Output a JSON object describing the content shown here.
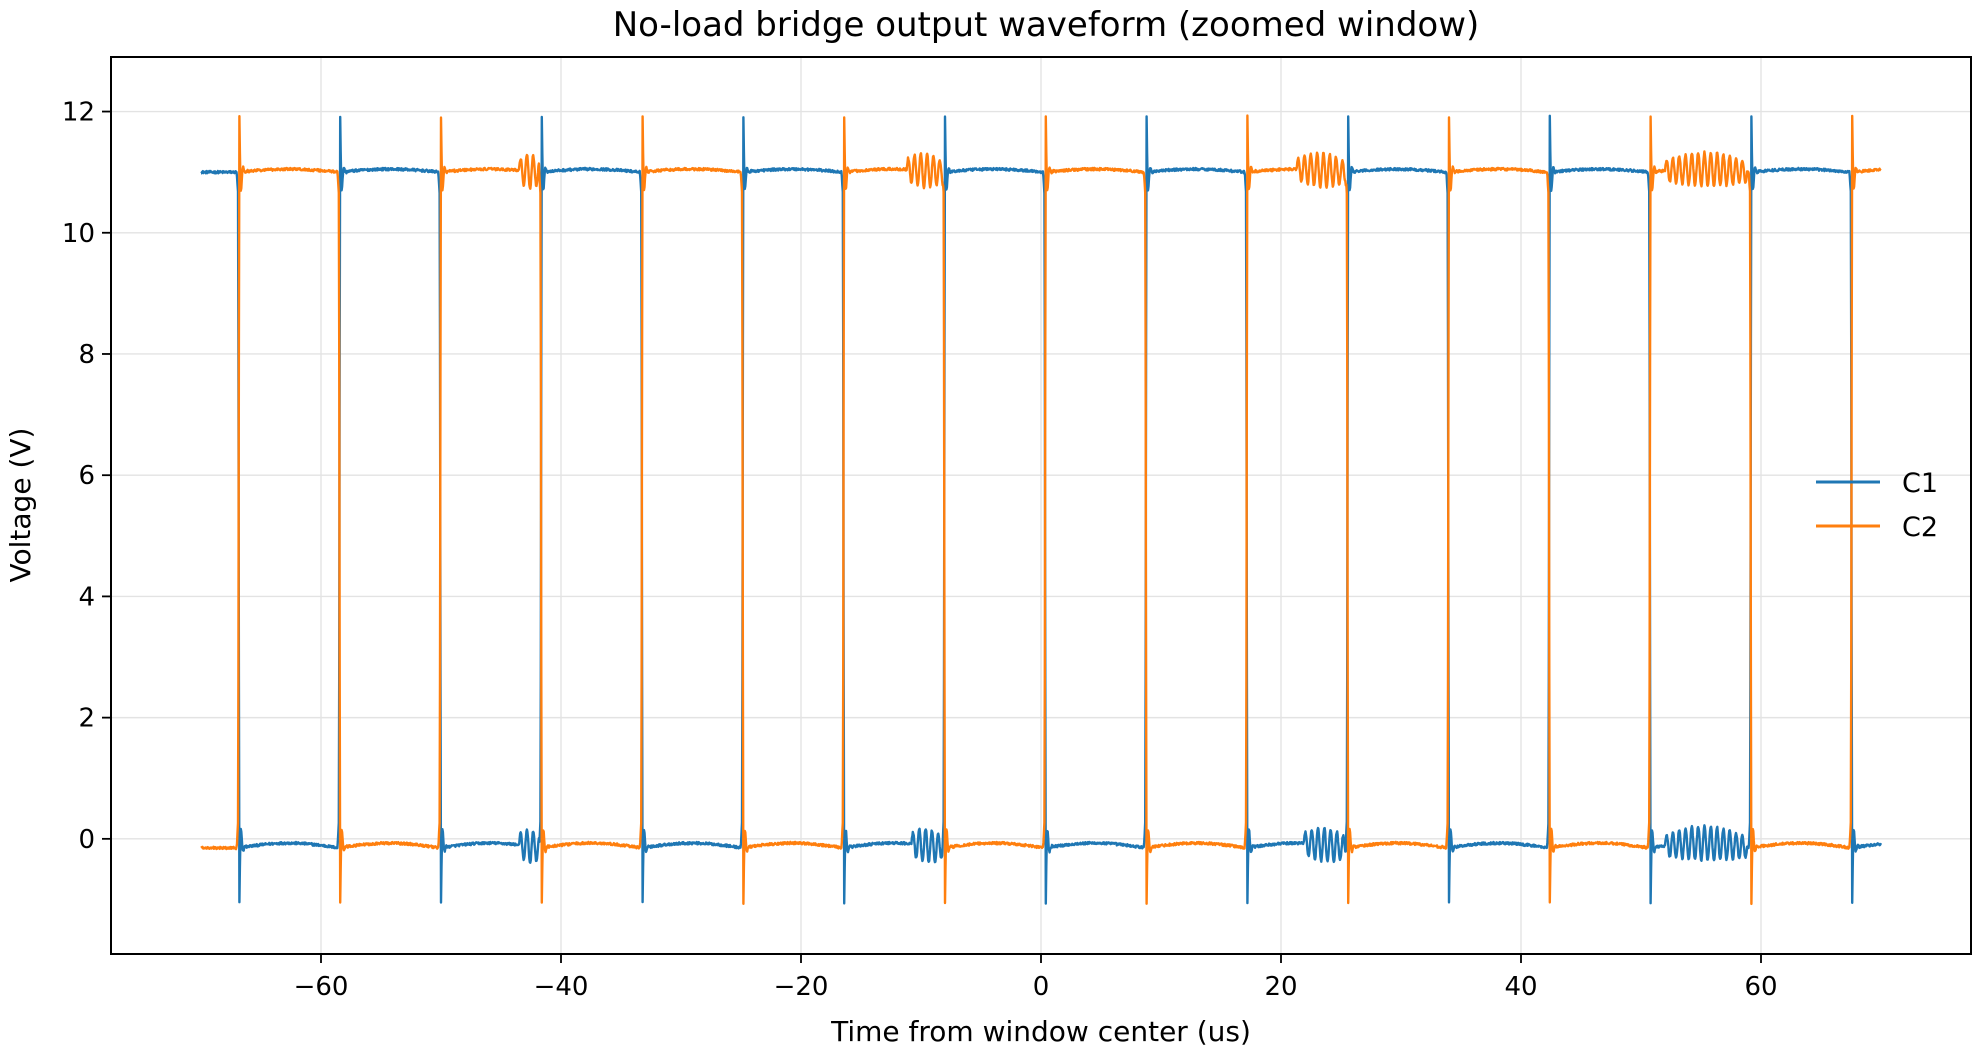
{
  "chart_data": {
    "type": "line",
    "title": "No-load bridge output waveform (zoomed window)",
    "xlabel": "Time from window center (us)",
    "ylabel": "Voltage (V)",
    "xlim": [
      -77.5,
      77.5
    ],
    "ylim": [
      -1.9,
      12.9
    ],
    "xticks": [
      -60,
      -40,
      -20,
      0,
      20,
      40,
      60
    ],
    "xtick_labels": [
      "−60",
      "−40",
      "−20",
      "0",
      "20",
      "40",
      "60"
    ],
    "yticks": [
      0,
      2,
      4,
      6,
      8,
      10,
      12
    ],
    "ytick_labels": [
      "0",
      "2",
      "4",
      "6",
      "8",
      "10",
      "12"
    ],
    "grid": true,
    "legend_position": "center-right",
    "x_range": [
      -70,
      70
    ],
    "period": 16.8,
    "high_level": 11.0,
    "low_level": -0.15,
    "series": [
      {
        "name": "C1",
        "color": "#1f77b4",
        "rising_edges": [
          -58.5,
          -41.7,
          -24.9,
          -8.1,
          8.7,
          25.5,
          42.3,
          59.1
        ],
        "falling_edges": [
          -66.9,
          -50.1,
          -33.3,
          -16.5,
          0.3,
          17.1,
          33.9,
          50.7,
          67.5
        ],
        "ringing_windows": [
          [
            -43.5,
            -41.8
          ],
          [
            -10.8,
            -8.2
          ],
          [
            21.9,
            25.4
          ],
          [
            52.0,
            58.8
          ]
        ]
      },
      {
        "name": "C2",
        "color": "#ff7f0e",
        "rising_edges": [
          -66.9,
          -50.1,
          -33.3,
          -16.5,
          0.3,
          17.1,
          33.9,
          50.7,
          67.5
        ],
        "falling_edges": [
          -58.5,
          -41.7,
          -24.9,
          -8.1,
          8.7,
          25.5,
          42.3,
          59.1
        ],
        "ringing_windows": [
          [
            -43.5,
            -41.8
          ],
          [
            -11.2,
            -8.2
          ],
          [
            21.3,
            25.4
          ],
          [
            52.0,
            58.8
          ]
        ]
      }
    ]
  }
}
